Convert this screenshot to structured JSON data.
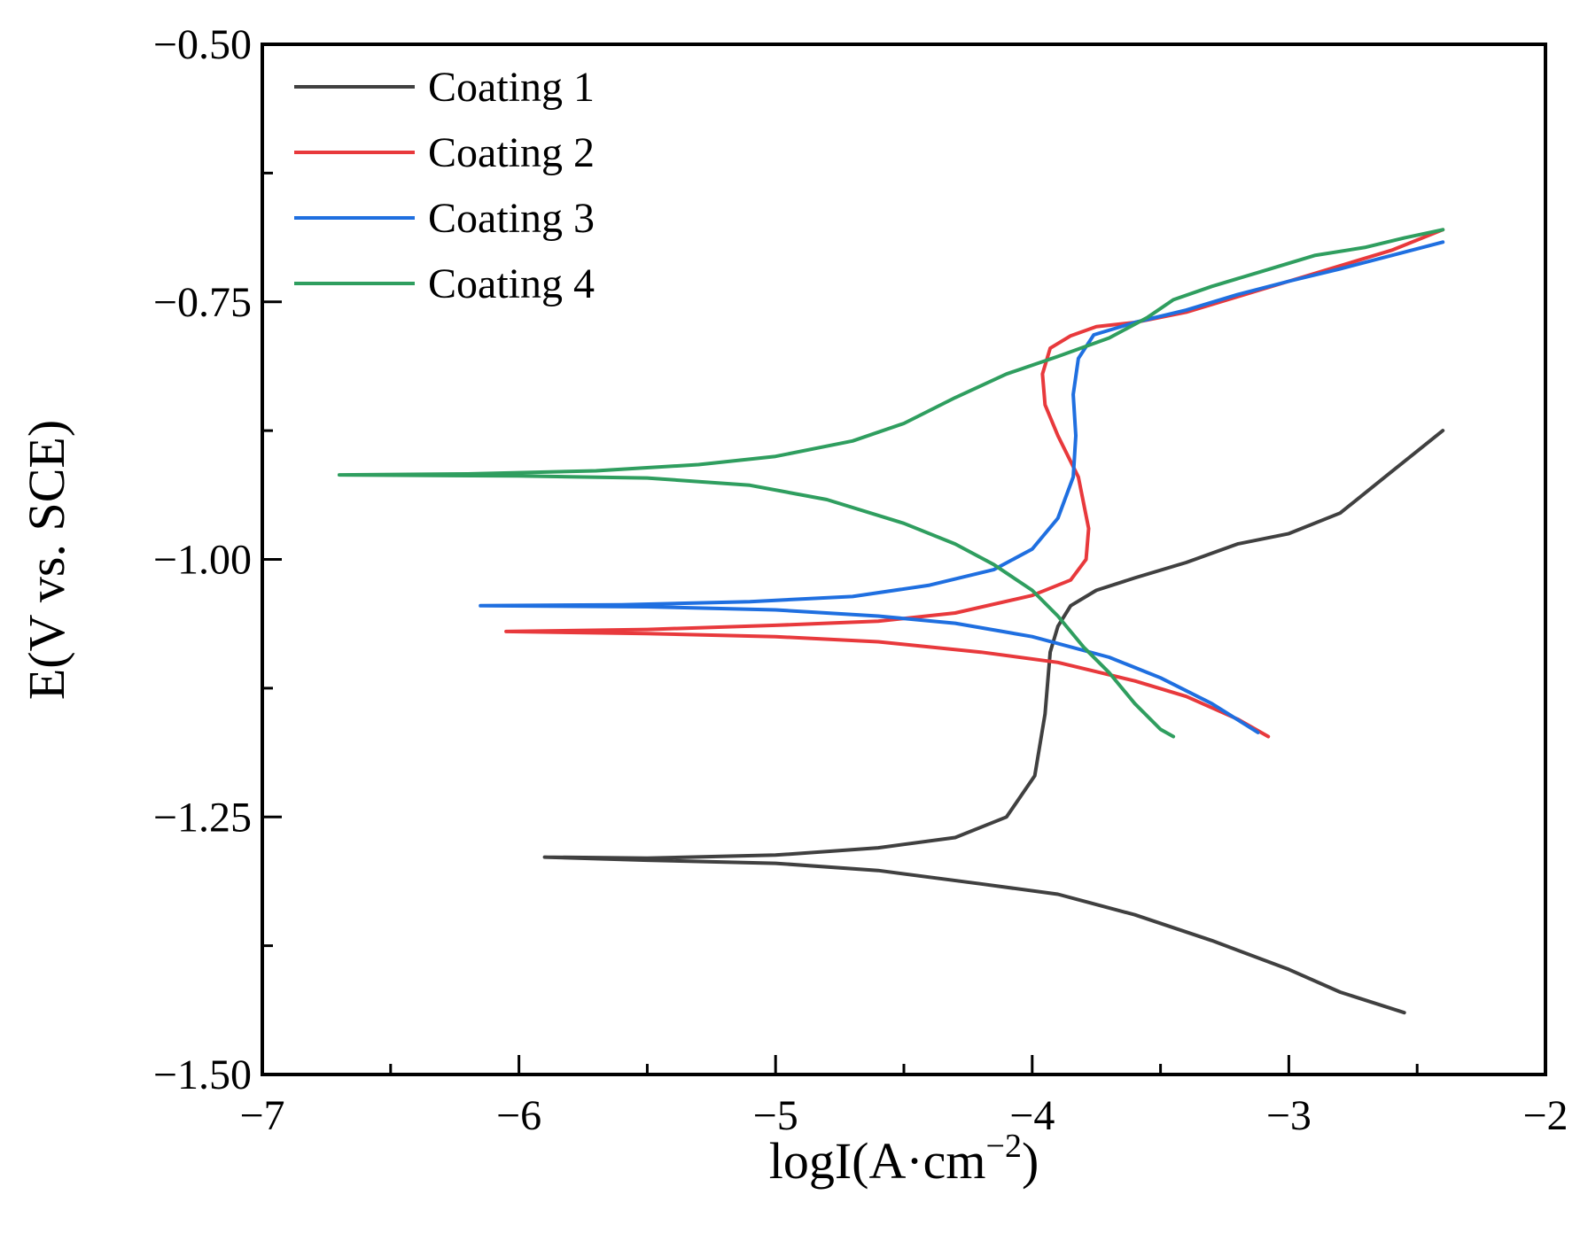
{
  "chart_data": {
    "type": "line",
    "title": "",
    "xlabel": "logI(A·cm",
    "xlabel_exponent": "−2",
    "xlabel_close": ")",
    "ylabel": "E(V vs. SCE)",
    "xlim": [
      -7,
      -2
    ],
    "ylim": [
      -1.5,
      -0.5
    ],
    "x_ticks": [
      -7,
      -6,
      -5,
      -4,
      -3,
      -2
    ],
    "x_tick_labels": [
      "−7",
      "−6",
      "−5",
      "−4",
      "−3",
      "−2"
    ],
    "y_ticks": [
      -1.5,
      -1.25,
      -1.0,
      -0.75,
      -0.5
    ],
    "y_tick_labels": [
      "−1.50",
      "−1.25",
      "−1.00",
      "−0.75",
      "−0.50"
    ],
    "grid": false,
    "legend_position": "top-left",
    "series": [
      {
        "name": "Coating 1",
        "color": "#404040",
        "points": [
          [
            -5.9,
            -1.289
          ],
          [
            -5.5,
            -1.29
          ],
          [
            -5.0,
            -1.287
          ],
          [
            -4.6,
            -1.28
          ],
          [
            -4.3,
            -1.27
          ],
          [
            -4.1,
            -1.25
          ],
          [
            -3.99,
            -1.21
          ],
          [
            -3.95,
            -1.15
          ],
          [
            -3.93,
            -1.09
          ],
          [
            -3.9,
            -1.065
          ],
          [
            -3.85,
            -1.045
          ],
          [
            -3.75,
            -1.03
          ],
          [
            -3.6,
            -1.018
          ],
          [
            -3.4,
            -1.003
          ],
          [
            -3.2,
            -0.985
          ],
          [
            -3.0,
            -0.975
          ],
          [
            -2.8,
            -0.955
          ],
          [
            -2.6,
            -0.915
          ],
          [
            -2.4,
            -0.875
          ],
          null,
          [
            -5.9,
            -1.289
          ],
          [
            -5.5,
            -1.292
          ],
          [
            -5.0,
            -1.295
          ],
          [
            -4.6,
            -1.302
          ],
          [
            -4.2,
            -1.315
          ],
          [
            -3.9,
            -1.325
          ],
          [
            -3.6,
            -1.345
          ],
          [
            -3.3,
            -1.37
          ],
          [
            -3.0,
            -1.398
          ],
          [
            -2.8,
            -1.42
          ],
          [
            -2.55,
            -1.44
          ]
        ]
      },
      {
        "name": "Coating 2",
        "color": "#e8393c",
        "points": [
          [
            -6.05,
            -1.07
          ],
          [
            -5.5,
            -1.068
          ],
          [
            -5.0,
            -1.064
          ],
          [
            -4.6,
            -1.06
          ],
          [
            -4.3,
            -1.052
          ],
          [
            -4.0,
            -1.035
          ],
          [
            -3.85,
            -1.02
          ],
          [
            -3.79,
            -1.0
          ],
          [
            -3.78,
            -0.97
          ],
          [
            -3.82,
            -0.92
          ],
          [
            -3.9,
            -0.88
          ],
          [
            -3.95,
            -0.85
          ],
          [
            -3.96,
            -0.82
          ],
          [
            -3.93,
            -0.795
          ],
          [
            -3.85,
            -0.783
          ],
          [
            -3.75,
            -0.774
          ],
          [
            -3.6,
            -0.77
          ],
          [
            -3.4,
            -0.76
          ],
          [
            -3.2,
            -0.745
          ],
          [
            -3.0,
            -0.73
          ],
          [
            -2.8,
            -0.715
          ],
          [
            -2.6,
            -0.7
          ],
          [
            -2.4,
            -0.68
          ],
          null,
          [
            -6.05,
            -1.07
          ],
          [
            -5.5,
            -1.072
          ],
          [
            -5.0,
            -1.075
          ],
          [
            -4.6,
            -1.08
          ],
          [
            -4.2,
            -1.09
          ],
          [
            -3.9,
            -1.1
          ],
          [
            -3.6,
            -1.118
          ],
          [
            -3.4,
            -1.133
          ],
          [
            -3.2,
            -1.155
          ],
          [
            -3.08,
            -1.172
          ]
        ]
      },
      {
        "name": "Coating 3",
        "color": "#1f6fe0",
        "points": [
          [
            -6.15,
            -1.045
          ],
          [
            -5.6,
            -1.044
          ],
          [
            -5.1,
            -1.041
          ],
          [
            -4.7,
            -1.036
          ],
          [
            -4.4,
            -1.025
          ],
          [
            -4.15,
            -1.01
          ],
          [
            -4.0,
            -0.99
          ],
          [
            -3.9,
            -0.96
          ],
          [
            -3.84,
            -0.92
          ],
          [
            -3.83,
            -0.88
          ],
          [
            -3.84,
            -0.84
          ],
          [
            -3.82,
            -0.805
          ],
          [
            -3.76,
            -0.782
          ],
          [
            -3.6,
            -0.77
          ],
          [
            -3.4,
            -0.758
          ],
          [
            -3.2,
            -0.743
          ],
          [
            -3.0,
            -0.73
          ],
          [
            -2.8,
            -0.718
          ],
          [
            -2.6,
            -0.705
          ],
          [
            -2.4,
            -0.692
          ],
          null,
          [
            -6.15,
            -1.045
          ],
          [
            -5.5,
            -1.046
          ],
          [
            -5.0,
            -1.049
          ],
          [
            -4.6,
            -1.055
          ],
          [
            -4.3,
            -1.062
          ],
          [
            -4.0,
            -1.075
          ],
          [
            -3.7,
            -1.095
          ],
          [
            -3.5,
            -1.115
          ],
          [
            -3.3,
            -1.14
          ],
          [
            -3.12,
            -1.168
          ]
        ]
      },
      {
        "name": "Coating 4",
        "color": "#2f9e5f",
        "points": [
          [
            -6.7,
            -0.918
          ],
          [
            -6.2,
            -0.917
          ],
          [
            -5.7,
            -0.914
          ],
          [
            -5.3,
            -0.908
          ],
          [
            -5.0,
            -0.9
          ],
          [
            -4.7,
            -0.885
          ],
          [
            -4.5,
            -0.868
          ],
          [
            -4.3,
            -0.843
          ],
          [
            -4.1,
            -0.82
          ],
          [
            -3.9,
            -0.803
          ],
          [
            -3.7,
            -0.785
          ],
          [
            -3.55,
            -0.765
          ],
          [
            -3.45,
            -0.748
          ],
          [
            -3.3,
            -0.735
          ],
          [
            -3.1,
            -0.72
          ],
          [
            -2.9,
            -0.705
          ],
          [
            -2.7,
            -0.697
          ],
          [
            -2.55,
            -0.688
          ],
          [
            -2.4,
            -0.68
          ],
          null,
          [
            -6.7,
            -0.918
          ],
          [
            -6.0,
            -0.919
          ],
          [
            -5.5,
            -0.921
          ],
          [
            -5.1,
            -0.928
          ],
          [
            -4.8,
            -0.942
          ],
          [
            -4.5,
            -0.965
          ],
          [
            -4.3,
            -0.985
          ],
          [
            -4.15,
            -1.005
          ],
          [
            -4.0,
            -1.03
          ],
          [
            -3.9,
            -1.055
          ],
          [
            -3.8,
            -1.085
          ],
          [
            -3.7,
            -1.11
          ],
          [
            -3.6,
            -1.14
          ],
          [
            -3.5,
            -1.165
          ],
          [
            -3.45,
            -1.172
          ]
        ]
      }
    ]
  }
}
